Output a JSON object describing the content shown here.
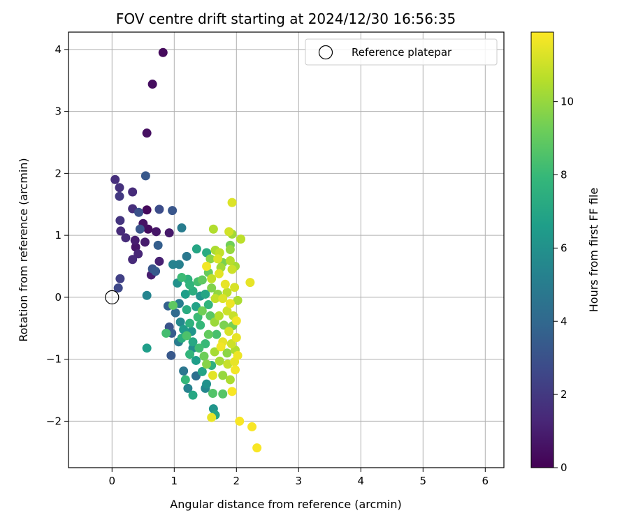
{
  "chart_data": {
    "type": "scatter",
    "title": "FOV centre drift starting at 2024/12/30 16:56:35",
    "xlabel": "Angular distance from reference (arcmin)",
    "ylabel": "Rotation from reference (arcmin)",
    "xlim": [
      -0.7,
      6.3
    ],
    "ylim": [
      -2.75,
      4.28
    ],
    "xticks": [
      0,
      1,
      2,
      3,
      4,
      5,
      6
    ],
    "xtick_labels": [
      "0",
      "1",
      "2",
      "3",
      "4",
      "5",
      "6"
    ],
    "yticks": [
      -2,
      -1,
      0,
      1,
      2,
      3,
      4
    ],
    "ytick_labels": [
      "−2",
      "−1",
      "0",
      "1",
      "2",
      "3",
      "4"
    ],
    "grid": true,
    "legend": {
      "placement": "top-right",
      "entries": [
        {
          "label": "Reference platepar",
          "marker": "open-circle",
          "color": "#000000"
        }
      ]
    },
    "reference_point": {
      "x": 0,
      "y": 0
    },
    "colorbar": {
      "label": "Hours from first FF file",
      "range": [
        0,
        11.9
      ],
      "ticks": [
        0,
        2,
        4,
        6,
        8,
        10
      ],
      "tick_labels": [
        "0",
        "2",
        "4",
        "6",
        "8",
        "10"
      ],
      "colormap": "viridis",
      "stops": [
        "#440154",
        "#482878",
        "#3e4989",
        "#31688e",
        "#26828e",
        "#1f9e89",
        "#35b779",
        "#6ece58",
        "#b5de2b",
        "#fde725"
      ]
    },
    "points": [
      {
        "x": 0.82,
        "y": 3.95,
        "c": 0.3
      },
      {
        "x": 0.65,
        "y": 3.44,
        "c": 0.4
      },
      {
        "x": 0.56,
        "y": 2.65,
        "c": 0.5
      },
      {
        "x": 0.54,
        "y": 1.96,
        "c": 3.3
      },
      {
        "x": 0.05,
        "y": 1.9,
        "c": 1.6
      },
      {
        "x": 0.12,
        "y": 1.77,
        "c": 1.7
      },
      {
        "x": 0.33,
        "y": 1.7,
        "c": 1.5
      },
      {
        "x": 0.12,
        "y": 1.63,
        "c": 2.0
      },
      {
        "x": 0.33,
        "y": 1.43,
        "c": 1.6
      },
      {
        "x": 0.56,
        "y": 1.41,
        "c": 0.3
      },
      {
        "x": 0.76,
        "y": 1.42,
        "c": 2.8
      },
      {
        "x": 0.97,
        "y": 1.4,
        "c": 3.2
      },
      {
        "x": 0.43,
        "y": 1.37,
        "c": 3.0
      },
      {
        "x": 0.13,
        "y": 1.24,
        "c": 1.8
      },
      {
        "x": 0.5,
        "y": 1.19,
        "c": 0.6
      },
      {
        "x": 1.12,
        "y": 1.12,
        "c": 5.0
      },
      {
        "x": 0.45,
        "y": 1.1,
        "c": 3.2
      },
      {
        "x": 0.58,
        "y": 1.1,
        "c": 0.4
      },
      {
        "x": 0.14,
        "y": 1.07,
        "c": 1.5
      },
      {
        "x": 0.71,
        "y": 1.06,
        "c": 0.7
      },
      {
        "x": 0.92,
        "y": 1.04,
        "c": 0.8
      },
      {
        "x": 0.22,
        "y": 0.96,
        "c": 1.5
      },
      {
        "x": 0.37,
        "y": 0.92,
        "c": 1.0
      },
      {
        "x": 0.53,
        "y": 0.89,
        "c": 0.9
      },
      {
        "x": 0.74,
        "y": 0.84,
        "c": 3.6
      },
      {
        "x": 0.38,
        "y": 0.81,
        "c": 0.7
      },
      {
        "x": 0.42,
        "y": 0.7,
        "c": 1.3
      },
      {
        "x": 1.2,
        "y": 0.66,
        "c": 4.8
      },
      {
        "x": 0.33,
        "y": 0.61,
        "c": 1.4
      },
      {
        "x": 0.76,
        "y": 0.58,
        "c": 1.1
      },
      {
        "x": 0.98,
        "y": 0.53,
        "c": 5.3
      },
      {
        "x": 1.08,
        "y": 0.53,
        "c": 5.2
      },
      {
        "x": 0.65,
        "y": 0.46,
        "c": 3.2
      },
      {
        "x": 0.7,
        "y": 0.42,
        "c": 3.4
      },
      {
        "x": 0.63,
        "y": 0.36,
        "c": 1.0
      },
      {
        "x": 0.13,
        "y": 0.3,
        "c": 2.3
      },
      {
        "x": 0.1,
        "y": 0.15,
        "c": 2.6
      },
      {
        "x": 0.56,
        "y": 0.03,
        "c": 5.4
      },
      {
        "x": 0.9,
        "y": -0.14,
        "c": 3.7
      },
      {
        "x": 0.98,
        "y": -0.13,
        "c": 8.9
      },
      {
        "x": 1.02,
        "y": -0.25,
        "c": 4.1
      },
      {
        "x": 0.92,
        "y": -0.48,
        "c": 3.1
      },
      {
        "x": 0.96,
        "y": -0.58,
        "c": 3.5
      },
      {
        "x": 0.87,
        "y": -0.58,
        "c": 8.3
      },
      {
        "x": 0.56,
        "y": -0.82,
        "c": 6.6
      },
      {
        "x": 0.95,
        "y": -0.94,
        "c": 3.3
      },
      {
        "x": 1.07,
        "y": -0.72,
        "c": 5.0
      },
      {
        "x": 1.15,
        "y": -1.19,
        "c": 4.7
      },
      {
        "x": 1.35,
        "y": -1.27,
        "c": 4.3
      },
      {
        "x": 1.18,
        "y": -1.33,
        "c": 7.9
      },
      {
        "x": 1.22,
        "y": -1.47,
        "c": 5.3
      },
      {
        "x": 1.3,
        "y": -1.58,
        "c": 7.1
      },
      {
        "x": 1.5,
        "y": -1.47,
        "c": 5.5
      },
      {
        "x": 1.52,
        "y": -1.4,
        "c": 6.0
      },
      {
        "x": 1.63,
        "y": -1.8,
        "c": 6.2
      },
      {
        "x": 1.66,
        "y": -1.9,
        "c": 7.0
      },
      {
        "x": 1.6,
        "y": -1.94,
        "c": 11.5
      },
      {
        "x": 1.62,
        "y": -1.55,
        "c": 8.6
      },
      {
        "x": 1.78,
        "y": -1.56,
        "c": 8.7
      },
      {
        "x": 1.93,
        "y": -1.52,
        "c": 11.8
      },
      {
        "x": 1.9,
        "y": -1.33,
        "c": 10.4
      },
      {
        "x": 1.62,
        "y": -1.26,
        "c": 11.4
      },
      {
        "x": 1.78,
        "y": -1.26,
        "c": 10.0
      },
      {
        "x": 1.98,
        "y": -1.17,
        "c": 11.7
      },
      {
        "x": 1.52,
        "y": -1.08,
        "c": 9.7
      },
      {
        "x": 1.73,
        "y": -1.03,
        "c": 10.3
      },
      {
        "x": 1.97,
        "y": -1.04,
        "c": 11.5
      },
      {
        "x": 2.05,
        "y": -2.0,
        "c": 11.8
      },
      {
        "x": 2.25,
        "y": -2.09,
        "c": 11.8
      },
      {
        "x": 2.33,
        "y": -2.43,
        "c": 11.8
      },
      {
        "x": 2.02,
        "y": -0.94,
        "c": 11.6
      },
      {
        "x": 2.0,
        "y": -0.65,
        "c": 11.5
      },
      {
        "x": 1.94,
        "y": -0.46,
        "c": 9.4
      },
      {
        "x": 2.02,
        "y": -0.05,
        "c": 10.4
      },
      {
        "x": 2.22,
        "y": 0.24,
        "c": 11.5
      },
      {
        "x": 2.07,
        "y": 0.94,
        "c": 10.7
      },
      {
        "x": 1.93,
        "y": 1.53,
        "c": 11.3
      },
      {
        "x": 1.63,
        "y": 1.1,
        "c": 10.5
      },
      {
        "x": 1.88,
        "y": 1.06,
        "c": 11.1
      },
      {
        "x": 1.93,
        "y": 1.02,
        "c": 10.2
      },
      {
        "x": 1.9,
        "y": 0.84,
        "c": 9.3
      },
      {
        "x": 1.9,
        "y": 0.77,
        "c": 10.0
      },
      {
        "x": 1.66,
        "y": 0.76,
        "c": 10.4
      },
      {
        "x": 1.73,
        "y": 0.72,
        "c": 10.8
      },
      {
        "x": 1.52,
        "y": 0.72,
        "c": 7.3
      },
      {
        "x": 1.36,
        "y": 0.78,
        "c": 7.0
      },
      {
        "x": 1.9,
        "y": 0.59,
        "c": 10.6
      },
      {
        "x": 1.78,
        "y": 0.56,
        "c": 9.5
      },
      {
        "x": 1.98,
        "y": 0.5,
        "c": 10.3
      },
      {
        "x": 1.52,
        "y": 0.5,
        "c": 11.7
      },
      {
        "x": 1.93,
        "y": 0.45,
        "c": 11.0
      },
      {
        "x": 1.72,
        "y": 0.38,
        "c": 11.4
      },
      {
        "x": 1.6,
        "y": 0.3,
        "c": 10.8
      },
      {
        "x": 1.82,
        "y": 0.21,
        "c": 11.5
      },
      {
        "x": 1.97,
        "y": 0.16,
        "c": 11.2
      },
      {
        "x": 1.12,
        "y": 0.32,
        "c": 8.1
      },
      {
        "x": 1.22,
        "y": 0.29,
        "c": 7.6
      },
      {
        "x": 1.05,
        "y": 0.23,
        "c": 6.0
      },
      {
        "x": 1.45,
        "y": 0.28,
        "c": 8.9
      },
      {
        "x": 1.3,
        "y": 0.1,
        "c": 7.4
      },
      {
        "x": 1.42,
        "y": 0.02,
        "c": 6.1
      },
      {
        "x": 1.78,
        "y": -0.02,
        "c": 11.3
      },
      {
        "x": 1.66,
        "y": -0.02,
        "c": 10.8
      },
      {
        "x": 1.55,
        "y": -0.12,
        "c": 7.7
      },
      {
        "x": 1.45,
        "y": -0.22,
        "c": 9.3
      },
      {
        "x": 1.38,
        "y": -0.32,
        "c": 8.1
      },
      {
        "x": 1.25,
        "y": -0.42,
        "c": 7.6
      },
      {
        "x": 1.15,
        "y": -0.52,
        "c": 6.4
      },
      {
        "x": 1.12,
        "y": -0.66,
        "c": 7.4
      },
      {
        "x": 1.2,
        "y": -0.62,
        "c": 8.5
      },
      {
        "x": 1.3,
        "y": -0.72,
        "c": 7.1
      },
      {
        "x": 1.4,
        "y": -0.82,
        "c": 8.2
      },
      {
        "x": 1.25,
        "y": -0.92,
        "c": 7.8
      },
      {
        "x": 1.35,
        "y": -1.02,
        "c": 6.6
      },
      {
        "x": 1.48,
        "y": -0.95,
        "c": 9.2
      },
      {
        "x": 1.55,
        "y": -0.6,
        "c": 9.0
      },
      {
        "x": 1.65,
        "y": -0.4,
        "c": 10.1
      },
      {
        "x": 1.72,
        "y": -0.3,
        "c": 10.6
      },
      {
        "x": 1.85,
        "y": -0.22,
        "c": 11.0
      },
      {
        "x": 1.88,
        "y": -0.55,
        "c": 11.2
      },
      {
        "x": 1.78,
        "y": -0.72,
        "c": 11.5
      },
      {
        "x": 1.75,
        "y": -0.8,
        "c": 11.7
      },
      {
        "x": 1.65,
        "y": -0.88,
        "c": 10.3
      },
      {
        "x": 1.85,
        "y": -0.9,
        "c": 9.8
      },
      {
        "x": 1.92,
        "y": -0.75,
        "c": 11.0
      },
      {
        "x": 1.6,
        "y": 0.15,
        "c": 9.6
      },
      {
        "x": 1.5,
        "y": 0.05,
        "c": 7.0
      },
      {
        "x": 1.35,
        "y": -0.15,
        "c": 6.8
      },
      {
        "x": 1.2,
        "y": -0.2,
        "c": 7.3
      },
      {
        "x": 1.18,
        "y": 0.05,
        "c": 6.6
      },
      {
        "x": 1.28,
        "y": -0.55,
        "c": 6.2
      },
      {
        "x": 1.42,
        "y": -0.45,
        "c": 7.9
      },
      {
        "x": 1.58,
        "y": -0.3,
        "c": 8.8
      },
      {
        "x": 1.7,
        "y": 0.05,
        "c": 9.9
      },
      {
        "x": 1.85,
        "y": 0.08,
        "c": 10.7
      },
      {
        "x": 1.9,
        "y": -0.1,
        "c": 11.6
      },
      {
        "x": 1.95,
        "y": -0.3,
        "c": 10.9
      },
      {
        "x": 1.8,
        "y": -0.45,
        "c": 9.5
      },
      {
        "x": 1.68,
        "y": -0.6,
        "c": 8.4
      },
      {
        "x": 1.5,
        "y": -0.75,
        "c": 8.0
      },
      {
        "x": 1.6,
        "y": -1.1,
        "c": 7.5
      },
      {
        "x": 1.45,
        "y": -1.2,
        "c": 6.9
      },
      {
        "x": 1.3,
        "y": -0.82,
        "c": 5.8
      },
      {
        "x": 1.1,
        "y": -0.4,
        "c": 5.6
      },
      {
        "x": 1.08,
        "y": -0.1,
        "c": 5.0
      },
      {
        "x": 1.25,
        "y": 0.2,
        "c": 7.7
      },
      {
        "x": 1.38,
        "y": 0.25,
        "c": 8.3
      },
      {
        "x": 1.55,
        "y": 0.4,
        "c": 9.1
      },
      {
        "x": 1.75,
        "y": 0.48,
        "c": 10.2
      },
      {
        "x": 1.7,
        "y": 0.62,
        "c": 11.3
      },
      {
        "x": 1.58,
        "y": 0.62,
        "c": 9.8
      },
      {
        "x": 2.0,
        "y": -0.38,
        "c": 11.7
      },
      {
        "x": 1.98,
        "y": -0.85,
        "c": 10.5
      },
      {
        "x": 1.86,
        "y": -1.08,
        "c": 10.9
      }
    ]
  }
}
